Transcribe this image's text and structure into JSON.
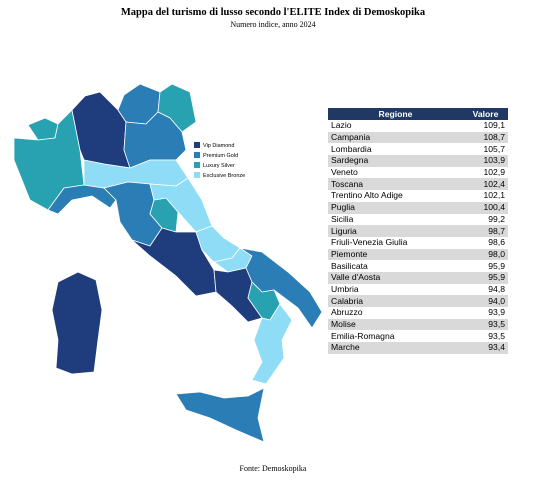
{
  "title": "Mappa del turismo di lusso secondo l'ELITE Index di Demoskopika",
  "subtitle": "Numero indice, anno 2024",
  "legend": [
    {
      "label": "Vip Diamond",
      "color": "#1f3d7d"
    },
    {
      "label": "Premium Gold",
      "color": "#2b7db6"
    },
    {
      "label": "Luxury Silver",
      "color": "#28a2b0"
    },
    {
      "label": "Exclusive Bronze",
      "color": "#8edcf6"
    }
  ],
  "table": {
    "header": [
      "Regione",
      "Valore"
    ],
    "rows": [
      [
        "Lazio",
        "109,1"
      ],
      [
        "Campania",
        "108,7"
      ],
      [
        "Lombardia",
        "105,7"
      ],
      [
        "Sardegna",
        "103,9"
      ],
      [
        "Veneto",
        "102,9"
      ],
      [
        "Toscana",
        "102,4"
      ],
      [
        "Trentino Alto Adige",
        "102,1"
      ],
      [
        "Puglia",
        "100,4"
      ],
      [
        "Sicilia",
        "99,2"
      ],
      [
        "Liguria",
        "98,7"
      ],
      [
        "Friuli-Venezia Giulia",
        "98,6"
      ],
      [
        "Piemonte",
        "98,0"
      ],
      [
        "Basilicata",
        "95,9"
      ],
      [
        "Valle d'Aosta",
        "95,9"
      ],
      [
        "Umbria",
        "94,8"
      ],
      [
        "Calabria",
        "94,0"
      ],
      [
        "Abruzzo",
        "93,9"
      ],
      [
        "Molise",
        "93,5"
      ],
      [
        "Emilia-Romagna",
        "93,5"
      ],
      [
        "Marche",
        "93,4"
      ]
    ]
  },
  "source": "Fonte: Demoskopika"
}
